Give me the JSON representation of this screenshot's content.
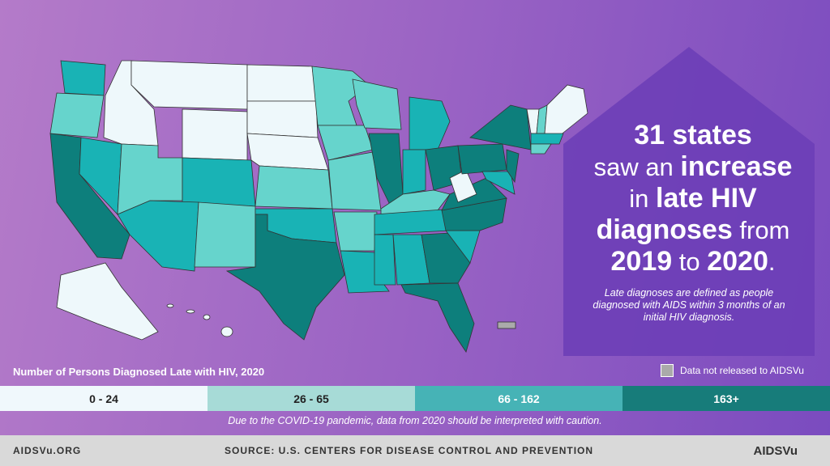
{
  "headline": [
    [
      {
        "text": "31 states",
        "bold": true
      }
    ],
    [
      {
        "text": "saw an ",
        "bold": false
      },
      {
        "text": "increase",
        "bold": true
      }
    ],
    [
      {
        "text": "in ",
        "bold": false
      },
      {
        "text": "late HIV",
        "bold": true
      }
    ],
    [
      {
        "text": "diagnoses",
        "bold": true
      },
      {
        "text": " from",
        "bold": false
      }
    ],
    [
      {
        "text": "2019",
        "bold": true
      },
      {
        "text": " to ",
        "bold": false
      },
      {
        "text": "2020",
        "bold": true
      },
      {
        "text": ".",
        "bold": false
      }
    ]
  ],
  "note": "Late diagnoses are defined as people diagnosed with AIDS within 3 months of an initial HIV diagnosis.",
  "legend": {
    "title": "Number of Persons Diagnosed Late with HIV, 2020",
    "no_data": "Data not released to AIDSVu",
    "bins": [
      {
        "label": "0 - 24",
        "color": "#f0f8fc",
        "text_color": "#222"
      },
      {
        "label": "26 - 65",
        "color": "#a7dbd7",
        "text_color": "#222"
      },
      {
        "label": "66 - 162",
        "color": "#46b3b6",
        "text_color": "#fff"
      },
      {
        "label": "163+",
        "color": "#177c7a",
        "text_color": "#fff"
      }
    ]
  },
  "caution": "Due to the COVID-19 pandemic, data from 2020 should be interpreted with caution.",
  "footer": {
    "website": "AIDSVu.ORG",
    "source": "SOURCE: U.S. CENTERS FOR DISEASE CONTROL AND PREVENTION",
    "logo": "AIDSVu"
  }
}
